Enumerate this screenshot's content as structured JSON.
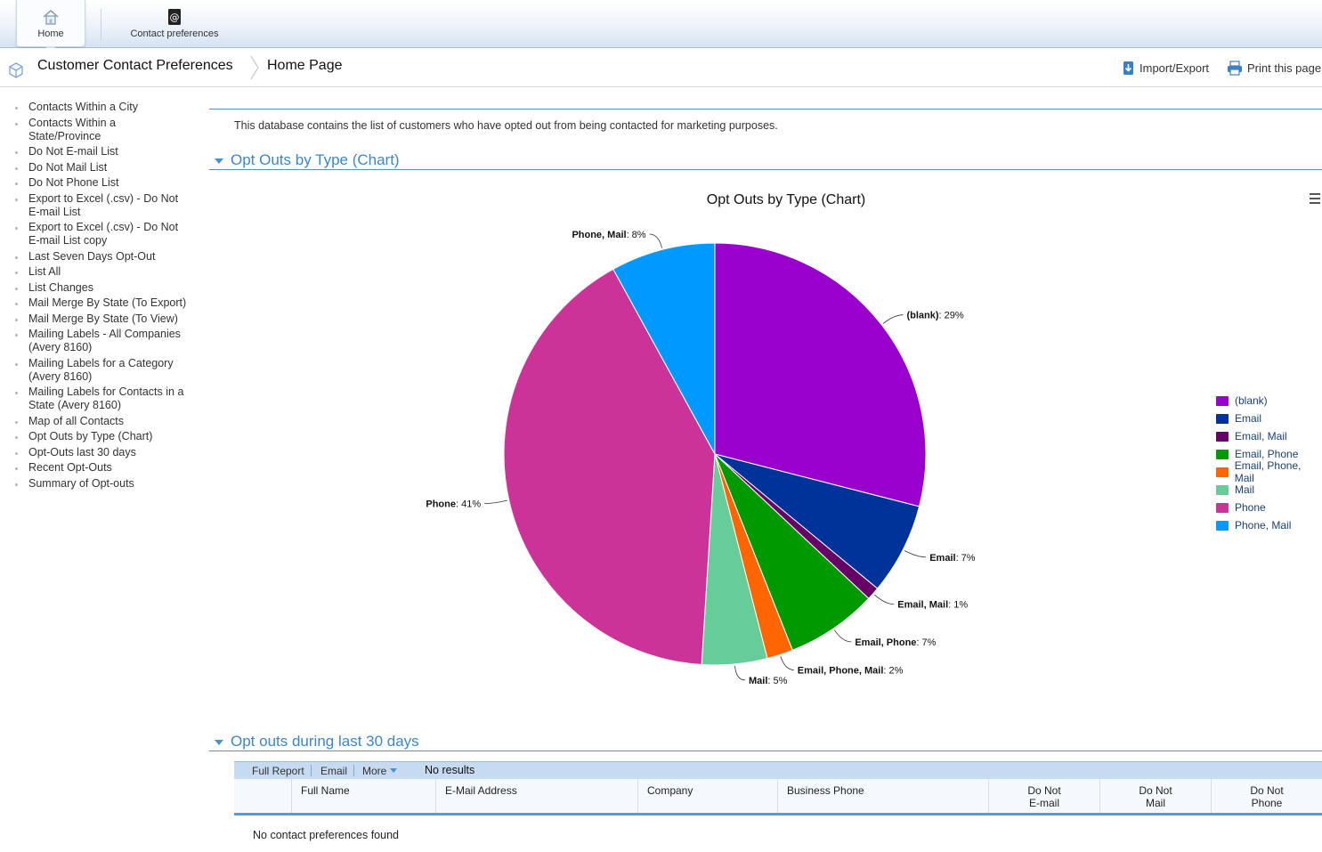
{
  "ribbon": {
    "home_label": "Home",
    "contact_prefs_label": "Contact preferences"
  },
  "breadcrumb": {
    "app_title": "Customer Contact Preferences",
    "page": "Home Page"
  },
  "toolbar": {
    "import_export": "Import/Export",
    "print": "Print this page"
  },
  "sidebar": {
    "items": [
      "Contacts Within a City",
      "Contacts Within a State/Province",
      "Do Not E-mail List",
      "Do Not Mail List",
      "Do Not Phone List",
      "Export to Excel (.csv) - Do Not E-mail List",
      "Export to Excel (.csv) - Do Not E-mail List copy",
      "Last Seven Days Opt-Out",
      "List All",
      "List Changes",
      "Mail Merge By State (To Export)",
      "Mail Merge By State (To View)",
      "Mailing Labels - All Companies (Avery 8160)",
      "Mailing Labels for a Category (Avery 8160)",
      "Mailing Labels for Contacts in a State (Avery 8160)",
      "Map of all Contacts",
      "Opt Outs by Type (Chart)",
      "Opt-Outs last 30 days",
      "Recent Opt-Outs",
      "Summary of Opt-outs"
    ]
  },
  "main": {
    "description": "This database contains the list of customers who have opted out from being contacted for marketing purposes.",
    "chart_section_title": "Opt Outs by Type (Chart)",
    "report_section_title": "Opt outs during last 30 days"
  },
  "chart_data": {
    "type": "pie",
    "title": "Opt Outs by Type (Chart)",
    "legend_position": "right",
    "slices": [
      {
        "label": "(blank)",
        "value": 29,
        "color": "#9900cc"
      },
      {
        "label": "Email",
        "value": 7,
        "color": "#003399"
      },
      {
        "label": "Email, Mail",
        "value": 1,
        "color": "#660066"
      },
      {
        "label": "Email, Phone",
        "value": 7,
        "color": "#009900"
      },
      {
        "label": "Email, Phone, Mail",
        "value": 2,
        "color": "#ff6600"
      },
      {
        "label": "Mail",
        "value": 5,
        "color": "#66cc99"
      },
      {
        "label": "Phone",
        "value": 41,
        "color": "#cc3399"
      },
      {
        "label": "Phone, Mail",
        "value": 8,
        "color": "#0099ff"
      }
    ]
  },
  "grid": {
    "toolbar": {
      "full_report": "Full Report",
      "email": "Email",
      "more": "More",
      "no_results": "No results"
    },
    "columns": {
      "full_name": "Full Name",
      "email": "E-Mail Address",
      "company": "Company",
      "business_phone": "Business Phone",
      "dne_1": "Do Not",
      "dne_2": "E-mail",
      "dnm_1": "Do Not",
      "dnm_2": "Mail",
      "dnp_1": "Do Not",
      "dnp_2": "Phone"
    },
    "empty_message": "No contact preferences found"
  }
}
